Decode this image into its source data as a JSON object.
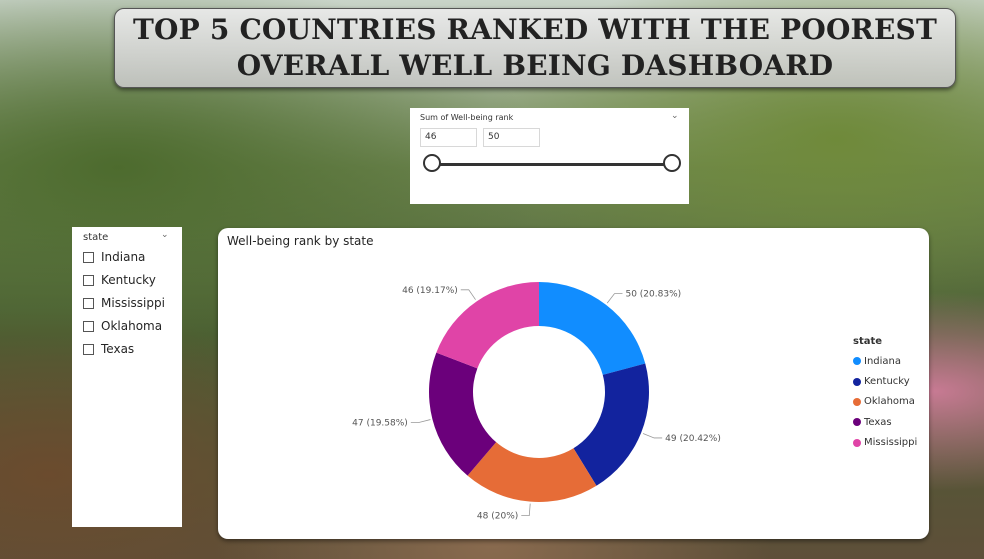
{
  "title": "TOP 5 COUNTRIES RANKED WITH THE POOREST OVERALL WELL BEING DASHBOARD",
  "range_slicer": {
    "header": "Sum of Well-being rank",
    "min_value": "46",
    "max_value": "50"
  },
  "state_slicer": {
    "header": "state",
    "items": [
      "Indiana",
      "Kentucky",
      "Mississippi",
      "Oklahoma",
      "Texas"
    ]
  },
  "chart_data": {
    "type": "pie",
    "title": "Well-being rank by state",
    "legend_title": "state",
    "legend_position": "right",
    "slices": [
      {
        "name": "Indiana",
        "value": 50,
        "label": "50 (20.83%)",
        "color": "#118DFF"
      },
      {
        "name": "Kentucky",
        "value": 49,
        "label": "49 (20.42%)",
        "color": "#12239E"
      },
      {
        "name": "Oklahoma",
        "value": 48,
        "label": "48 (20%)",
        "color": "#E66C37"
      },
      {
        "name": "Texas",
        "value": 47,
        "label": "47 (19.58%)",
        "color": "#6B007B"
      },
      {
        "name": "Mississippi",
        "value": 46,
        "label": "46 (19.17%)",
        "color": "#E044A7"
      }
    ]
  }
}
